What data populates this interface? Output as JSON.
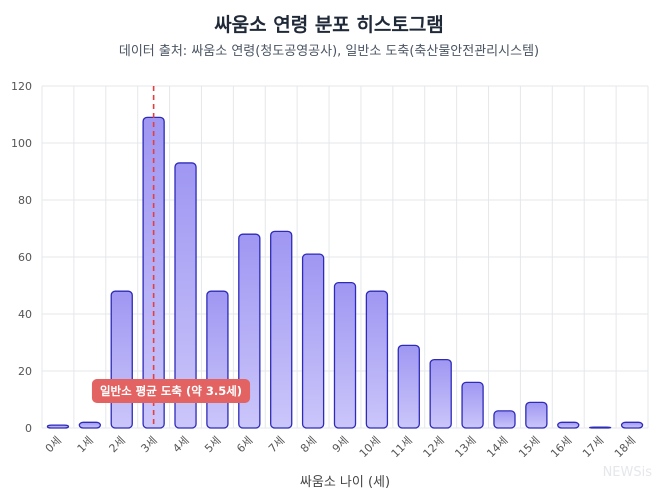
{
  "chart_data": {
    "type": "bar",
    "title": "싸움소 연령 분포 히스토그램",
    "subtitle": "데이터 출처: 싸움소 연령(청도공영공사), 일반소 도축(축산물안전관리시스템)",
    "xlabel": "싸움소 나이 (세)",
    "ylabel": "",
    "ylim": [
      0,
      120
    ],
    "yticks": [
      0,
      20,
      40,
      60,
      80,
      100,
      120
    ],
    "categories": [
      "0세",
      "1세",
      "2세",
      "3세",
      "4세",
      "5세",
      "6세",
      "7세",
      "8세",
      "9세",
      "10세",
      "11세",
      "12세",
      "13세",
      "14세",
      "15세",
      "16세",
      "17세",
      "18세"
    ],
    "values": [
      1,
      2,
      48,
      109,
      93,
      48,
      68,
      69,
      61,
      51,
      48,
      29,
      24,
      16,
      6,
      9,
      2,
      0,
      2
    ],
    "grid": true,
    "reference_line": {
      "x": 3.5,
      "label": "일반소 평균 도축 (약 3.5세)",
      "color": "#e53e3e"
    },
    "colors": {
      "bar_fill_top": "#9f97f2",
      "bar_fill_bottom": "#cbc6fa",
      "bar_stroke": "#2d2bb8",
      "grid": "#e5e7eb",
      "annotation_bg": "#e36363"
    },
    "watermark": "NEWSis"
  }
}
